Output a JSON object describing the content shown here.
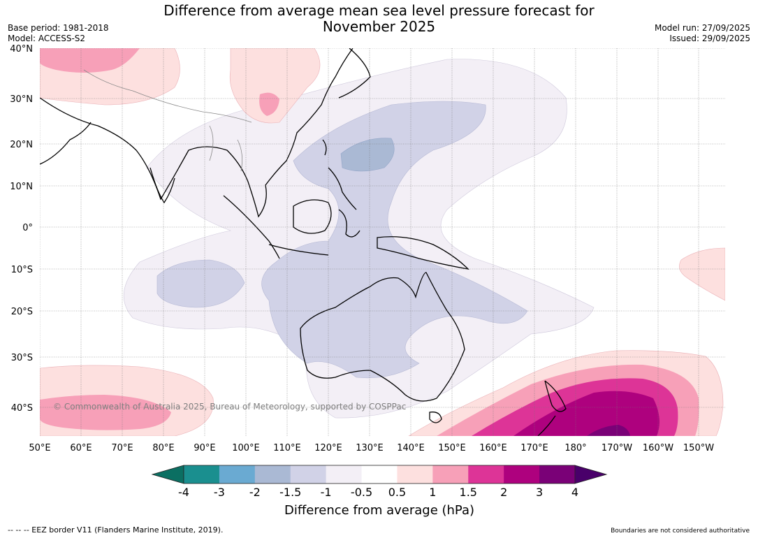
{
  "header": {
    "title_line1": "Difference from average mean sea level pressure forecast for",
    "title_line2": "November 2025",
    "base_period": "Base period: 1981-2018",
    "model": "Model: ACCESS-S2",
    "model_run": "Model run: 27/09/2025",
    "issued": "Issued: 29/09/2025"
  },
  "map": {
    "copyright": "© Commonwealth of Australia 2025, Bureau of Meteorology, supported by COSPPac",
    "lat_labels": [
      "40°N",
      "30°N",
      "20°N",
      "10°N",
      "0°",
      "10°S",
      "20°S",
      "30°S",
      "40°S"
    ],
    "lon_labels": [
      "50°E",
      "60°E",
      "70°E",
      "80°E",
      "90°E",
      "100°E",
      "110°E",
      "120°E",
      "130°E",
      "140°E",
      "150°E",
      "160°E",
      "170°E",
      "180°",
      "170°W",
      "160°W",
      "150°W"
    ]
  },
  "colorbar": {
    "ticks": [
      "-4",
      "-3",
      "-2",
      "-1.5",
      "-1",
      "-0.5",
      "0.5",
      "1",
      "1.5",
      "2",
      "3",
      "4"
    ],
    "colors": [
      "#1a8f8f",
      "#6aaad2",
      "#aab9d4",
      "#d1d2e7",
      "#f3eff6",
      "#ffffff",
      "#fde0df",
      "#f7a0b8",
      "#dd3497",
      "#ae017e",
      "#7a0177"
    ],
    "low_extend_color": "#0b6f62",
    "high_extend_color": "#49006a",
    "label": "Difference from average (hPa)"
  },
  "footer": {
    "eez": "--  --  -- EEZ border V11 (Flanders Marine Institute, 2019).",
    "disclaimer": "Boundaries are not considered authoritative"
  }
}
